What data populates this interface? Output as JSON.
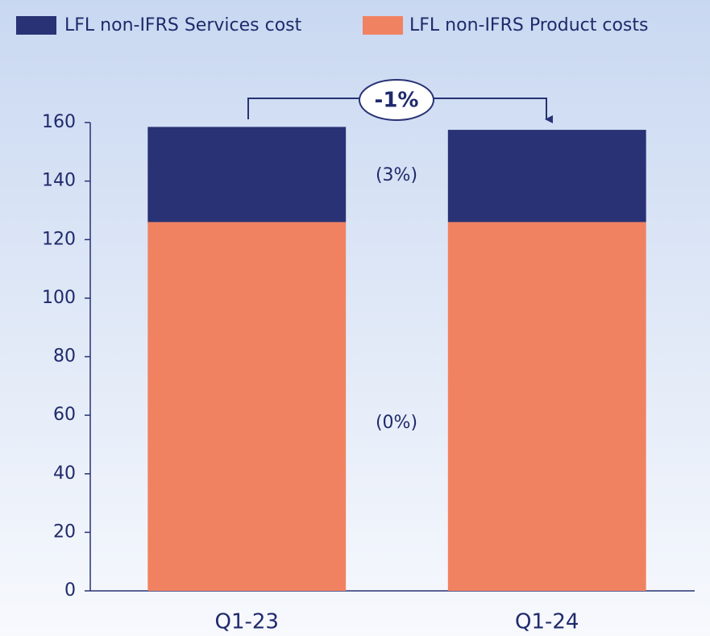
{
  "chart_data": {
    "type": "bar",
    "stacked": true,
    "categories": [
      "Q1-23",
      "Q1-24"
    ],
    "series": [
      {
        "name": "LFL non-IFRS Product costs",
        "color": "#f08262",
        "values": [
          126,
          126
        ]
      },
      {
        "name": "LFL non-IFRS Services cost",
        "color": "#283274",
        "values": [
          32.5,
          31.5
        ]
      }
    ],
    "ylim": [
      0,
      160
    ],
    "yticks": [
      0,
      20,
      40,
      60,
      80,
      100,
      120,
      140,
      160
    ],
    "annotations": [
      "-1%",
      "(3%)",
      "(0%)"
    ]
  }
}
